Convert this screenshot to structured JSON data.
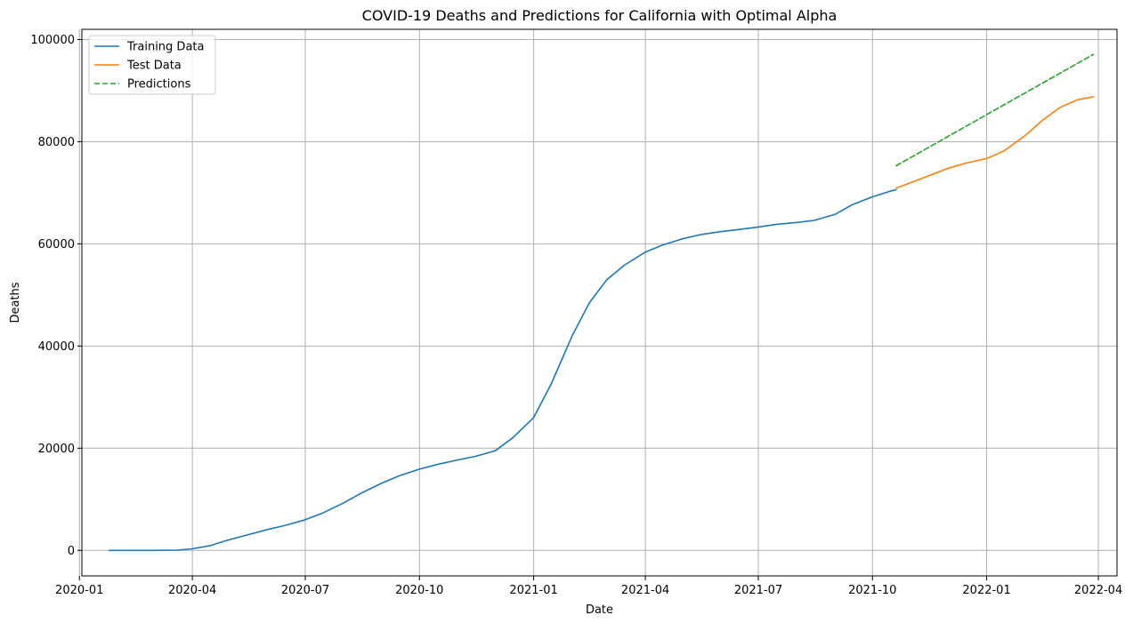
{
  "chart_data": {
    "type": "line",
    "title": "COVID-19 Deaths and Predictions for California with Optimal Alpha",
    "xlabel": "Date",
    "ylabel": "Deaths",
    "x_type": "date",
    "xlim": [
      "2020-01-03",
      "2022-04-16"
    ],
    "ylim": [
      -5000,
      102000
    ],
    "x_ticks": [
      "2020-01-01",
      "2020-04-01",
      "2020-07-01",
      "2020-10-01",
      "2021-01-01",
      "2021-04-01",
      "2021-07-01",
      "2021-10-01",
      "2022-01-01",
      "2022-04-01"
    ],
    "x_tick_labels": [
      "2020-01",
      "2020-04",
      "2020-07",
      "2020-10",
      "2021-01",
      "2021-04",
      "2021-07",
      "2021-10",
      "2022-01",
      "2022-04"
    ],
    "y_ticks": [
      0,
      20000,
      40000,
      60000,
      80000,
      100000
    ],
    "y_tick_labels": [
      "0",
      "20000",
      "40000",
      "60000",
      "80000",
      "100000"
    ],
    "grid": true,
    "legend_position": "top-left",
    "series": [
      {
        "name": "Training Data",
        "color": "#1f77b4",
        "style": "solid",
        "points": [
          [
            "2020-01-25",
            0
          ],
          [
            "2020-02-15",
            0
          ],
          [
            "2020-03-01",
            0
          ],
          [
            "2020-03-20",
            50
          ],
          [
            "2020-04-01",
            300
          ],
          [
            "2020-04-15",
            900
          ],
          [
            "2020-05-01",
            2100
          ],
          [
            "2020-05-15",
            3000
          ],
          [
            "2020-06-01",
            4100
          ],
          [
            "2020-06-15",
            4900
          ],
          [
            "2020-07-01",
            6000
          ],
          [
            "2020-07-15",
            7300
          ],
          [
            "2020-08-01",
            9300
          ],
          [
            "2020-08-15",
            11200
          ],
          [
            "2020-09-01",
            13200
          ],
          [
            "2020-09-15",
            14600
          ],
          [
            "2020-10-01",
            15900
          ],
          [
            "2020-10-15",
            16800
          ],
          [
            "2020-11-01",
            17700
          ],
          [
            "2020-11-15",
            18400
          ],
          [
            "2020-12-01",
            19500
          ],
          [
            "2020-12-15",
            22000
          ],
          [
            "2021-01-01",
            26000
          ],
          [
            "2021-01-15",
            32500
          ],
          [
            "2021-02-01",
            42000
          ],
          [
            "2021-02-15",
            48500
          ],
          [
            "2021-03-01",
            53000
          ],
          [
            "2021-03-15",
            55800
          ],
          [
            "2021-04-01",
            58400
          ],
          [
            "2021-04-15",
            59800
          ],
          [
            "2021-05-01",
            61000
          ],
          [
            "2021-05-15",
            61800
          ],
          [
            "2021-06-01",
            62400
          ],
          [
            "2021-06-15",
            62800
          ],
          [
            "2021-07-01",
            63300
          ],
          [
            "2021-07-15",
            63800
          ],
          [
            "2021-08-01",
            64200
          ],
          [
            "2021-08-15",
            64600
          ],
          [
            "2021-09-01",
            65800
          ],
          [
            "2021-09-15",
            67700
          ],
          [
            "2021-10-01",
            69200
          ],
          [
            "2021-10-15",
            70300
          ],
          [
            "2021-10-20",
            70600
          ]
        ]
      },
      {
        "name": "Test Data",
        "color": "#ff7f0e",
        "style": "solid",
        "points": [
          [
            "2021-10-20",
            70900
          ],
          [
            "2021-11-01",
            72000
          ],
          [
            "2021-11-15",
            73300
          ],
          [
            "2021-12-01",
            74800
          ],
          [
            "2021-12-15",
            75800
          ],
          [
            "2022-01-01",
            76700
          ],
          [
            "2022-01-15",
            78200
          ],
          [
            "2022-02-01",
            81200
          ],
          [
            "2022-02-15",
            84200
          ],
          [
            "2022-03-01",
            86700
          ],
          [
            "2022-03-15",
            88200
          ],
          [
            "2022-03-28",
            88800
          ]
        ]
      },
      {
        "name": "Predictions",
        "color": "#2ca02c",
        "style": "dashed",
        "points": [
          [
            "2021-10-20",
            75300
          ],
          [
            "2022-03-28",
            97100
          ]
        ]
      }
    ]
  }
}
